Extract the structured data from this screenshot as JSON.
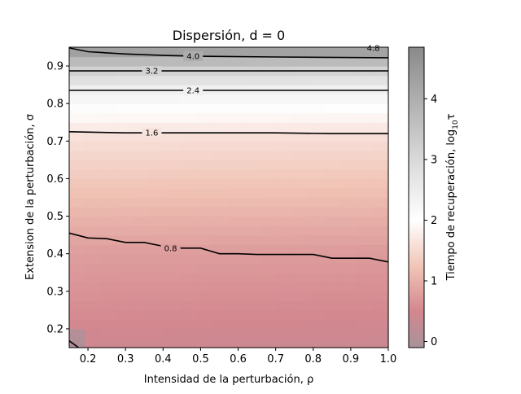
{
  "chart_data": {
    "type": "heatmap",
    "title": "Dispersión, d = 0",
    "xlabel": "Intensidad de la perturbación, ρ",
    "ylabel": "Extension de la perturbación, σ",
    "colorbar_label": "Tiempo de recuperación, log",
    "colorbar_label_sub": "10",
    "colorbar_label_tail": "τ",
    "xlim": [
      0.15,
      1.0
    ],
    "ylim": [
      0.15,
      0.95
    ],
    "clim": [
      -0.1,
      4.85
    ],
    "x_ticks": [
      0.2,
      0.3,
      0.4,
      0.5,
      0.6,
      0.7,
      0.8,
      0.9,
      1.0
    ],
    "x_tick_labels": [
      "0.2",
      "0.3",
      "0.4",
      "0.5",
      "0.6",
      "0.7",
      "0.8",
      "0.9",
      "1.0"
    ],
    "y_ticks": [
      0.2,
      0.3,
      0.4,
      0.5,
      0.6,
      0.7,
      0.8,
      0.9
    ],
    "y_tick_labels": [
      "0.2",
      "0.3",
      "0.4",
      "0.5",
      "0.6",
      "0.7",
      "0.8",
      "0.9"
    ],
    "colorbar_ticks": [
      0,
      1,
      2,
      3,
      4
    ],
    "colorbar_tick_labels": [
      "0",
      "1",
      "2",
      "3",
      "4"
    ],
    "grid": false,
    "colormap": [
      {
        "v": -0.1,
        "color": "#a8929b"
      },
      {
        "v": 0.5,
        "color": "#d3878f"
      },
      {
        "v": 1.2,
        "color": "#f0c2b4"
      },
      {
        "v": 2.0,
        "color": "#ffffff"
      },
      {
        "v": 3.0,
        "color": "#d9d9d9"
      },
      {
        "v": 4.85,
        "color": "#8a8a8a"
      }
    ],
    "contour_color": "#000000",
    "contours": [
      {
        "level": "0.8",
        "points": [
          [
            0.15,
            0.455
          ],
          [
            0.2,
            0.442
          ],
          [
            0.25,
            0.44
          ],
          [
            0.3,
            0.43
          ],
          [
            0.35,
            0.43
          ],
          [
            0.4,
            0.42
          ],
          [
            0.45,
            0.415
          ],
          [
            0.5,
            0.415
          ],
          [
            0.55,
            0.4
          ],
          [
            0.6,
            0.4
          ],
          [
            0.65,
            0.398
          ],
          [
            0.7,
            0.398
          ],
          [
            0.75,
            0.398
          ],
          [
            0.8,
            0.398
          ],
          [
            0.85,
            0.388
          ],
          [
            0.9,
            0.388
          ],
          [
            0.95,
            0.388
          ],
          [
            1.0,
            0.378
          ]
        ],
        "label_at": [
          0.42,
          0.415
        ]
      },
      {
        "level": "1.6",
        "points": [
          [
            0.15,
            0.725
          ],
          [
            0.3,
            0.722
          ],
          [
            0.5,
            0.722
          ],
          [
            0.7,
            0.722
          ],
          [
            0.85,
            0.72
          ],
          [
            1.0,
            0.72
          ]
        ],
        "label_at": [
          0.37,
          0.722
        ]
      },
      {
        "level": "2.4",
        "points": [
          [
            0.15,
            0.835
          ],
          [
            0.5,
            0.835
          ],
          [
            1.0,
            0.835
          ]
        ],
        "label_at": [
          0.48,
          0.835
        ]
      },
      {
        "level": "3.2",
        "points": [
          [
            0.15,
            0.887
          ],
          [
            0.5,
            0.887
          ],
          [
            1.0,
            0.887
          ]
        ],
        "label_at": [
          0.37,
          0.887
        ]
      },
      {
        "level": "4.0",
        "points": [
          [
            0.15,
            0.948
          ],
          [
            0.2,
            0.938
          ],
          [
            0.3,
            0.932
          ],
          [
            0.4,
            0.928
          ],
          [
            0.5,
            0.926
          ],
          [
            0.7,
            0.924
          ],
          [
            1.0,
            0.922
          ]
        ],
        "label_at": [
          0.48,
          0.926
        ]
      },
      {
        "level": "4.8",
        "points": [
          [
            0.15,
            0.168
          ],
          [
            0.175,
            0.15
          ]
        ],
        "label_at": null
      }
    ],
    "corner_labels": [
      {
        "text": "4.8",
        "at": [
          0.96,
          0.945
        ]
      }
    ]
  }
}
